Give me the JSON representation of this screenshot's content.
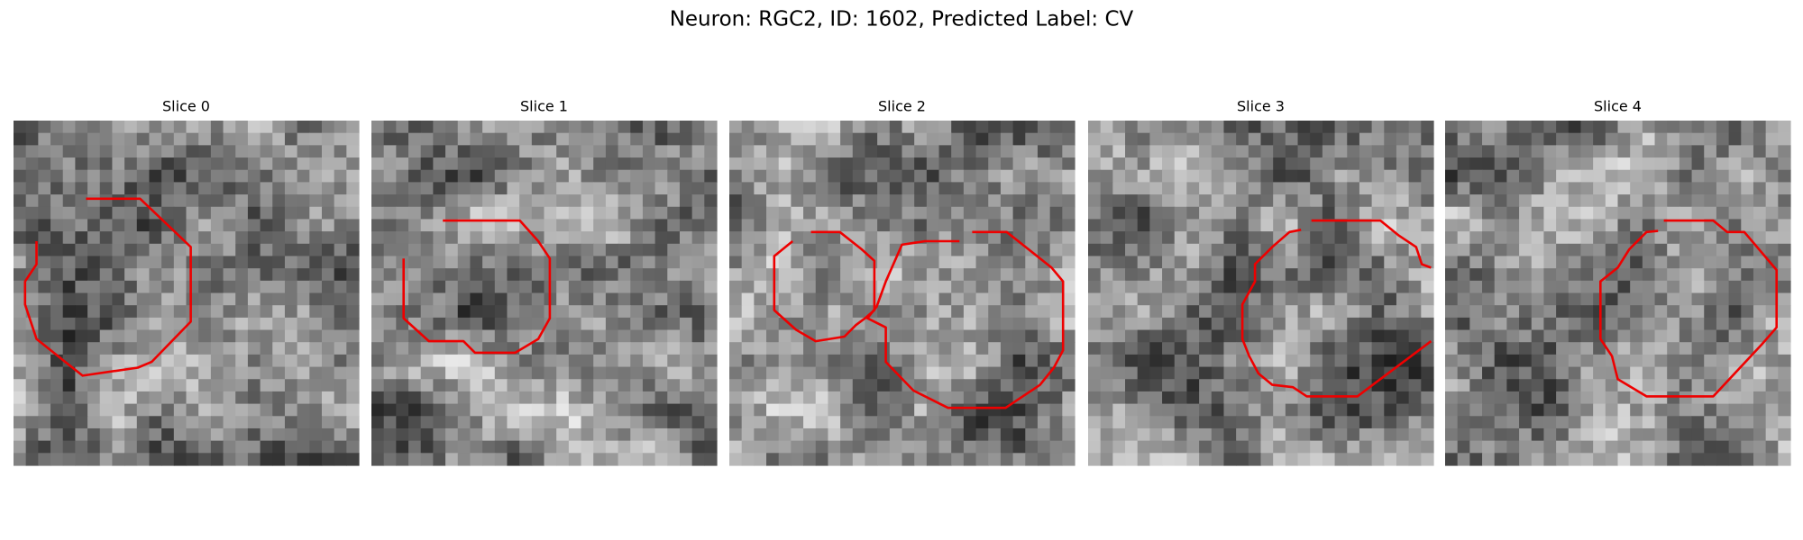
{
  "title": "Neuron: RGC2, ID: 1602, Predicted Label: CV",
  "panels": [
    {
      "title": "Slice 0"
    },
    {
      "title": "Slice 1"
    },
    {
      "title": "Slice 2"
    },
    {
      "title": "Slice 3"
    },
    {
      "title": "Slice 4"
    }
  ]
}
